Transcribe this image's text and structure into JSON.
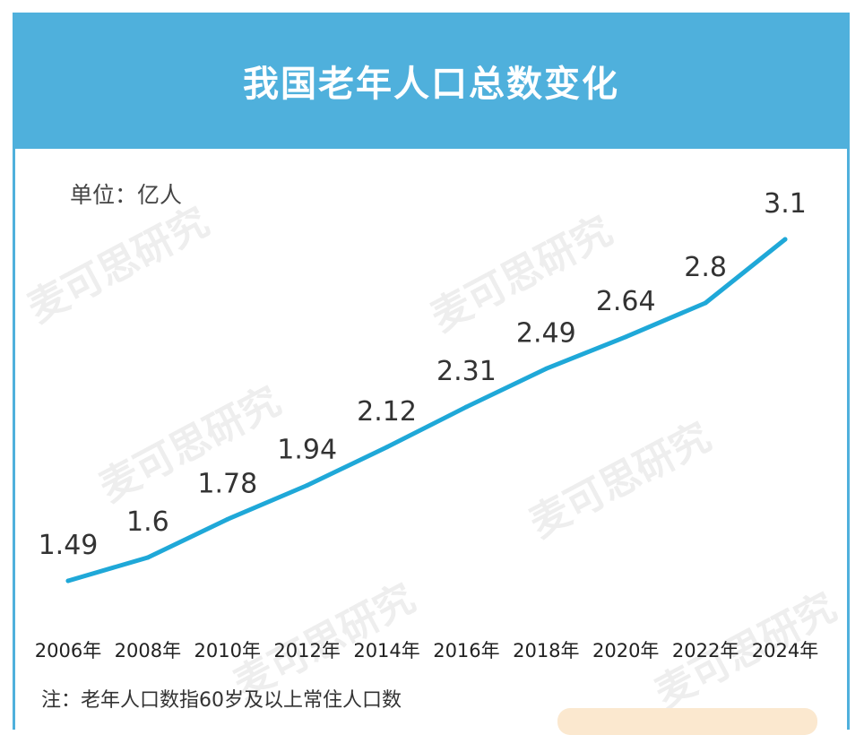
{
  "header": {
    "title": "我国老年人口总数变化"
  },
  "unit_label": "单位：亿人",
  "note": "注：老年人口数指60岁及以上常住人口数",
  "watermark": "麦可思研究",
  "colors": {
    "accent": "#4fb0dc",
    "line": "#1fa8d8",
    "text": "#333333"
  },
  "chart_data": {
    "type": "line",
    "title": "我国老年人口总数变化",
    "ylabel": "单位：亿人",
    "categories": [
      "2006年",
      "2008年",
      "2010年",
      "2012年",
      "2014年",
      "2016年",
      "2018年",
      "2020年",
      "2022年",
      "2024年"
    ],
    "values": [
      1.49,
      1.6,
      1.78,
      1.94,
      2.12,
      2.31,
      2.49,
      2.64,
      2.8,
      3.1
    ],
    "value_labels": [
      "1.49",
      "1.6",
      "1.78",
      "1.94",
      "2.12",
      "2.31",
      "2.49",
      "2.64",
      "2.8",
      "3.1"
    ],
    "grid": false,
    "legend": "none"
  }
}
